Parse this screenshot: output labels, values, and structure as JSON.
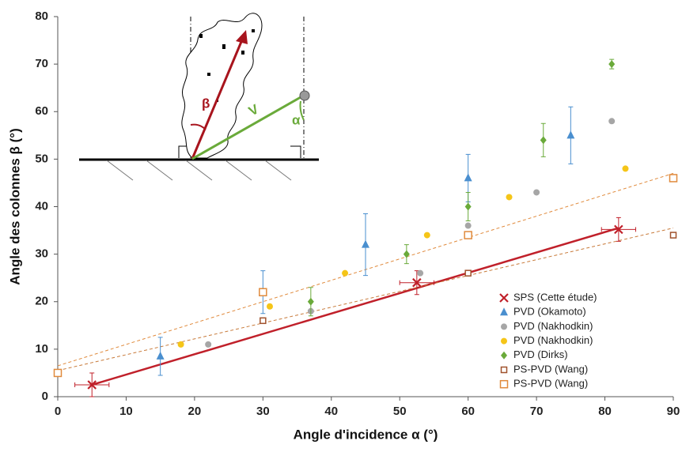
{
  "chart_data": {
    "type": "scatter",
    "xlabel": "Angle d'incidence α (°)",
    "ylabel": "Angle des colonnes β (°)",
    "xlim": [
      0,
      90
    ],
    "ylim": [
      0,
      80
    ],
    "xticks": [
      0,
      10,
      20,
      30,
      40,
      50,
      60,
      70,
      80,
      90
    ],
    "yticks": [
      0,
      10,
      20,
      30,
      40,
      50,
      60,
      70,
      80
    ],
    "grid": false,
    "legend": "lower right",
    "inset_labels": [
      "β",
      "V",
      "α"
    ],
    "series": [
      {
        "name": "SPS (Cette étude)",
        "color": "#c0202a",
        "marker": "x",
        "x": [
          5,
          52.5,
          82
        ],
        "values": [
          2.5,
          24,
          35.2
        ],
        "errors": [
          2.5,
          2.5,
          2.5
        ],
        "xerrors": [
          2.5,
          2.5,
          2.5
        ]
      },
      {
        "name": "PVD (Okamoto)",
        "color": "#4a8fcf",
        "marker": "triangle",
        "x": [
          15,
          30,
          45,
          60,
          75
        ],
        "values": [
          8.5,
          22,
          32,
          46,
          55
        ],
        "errors": [
          4,
          4.5,
          6.5,
          5,
          6
        ]
      },
      {
        "name": "PVD (Nakhodkin)",
        "color": "#a6a6a6",
        "marker": "circle",
        "x": [
          22,
          37,
          53,
          60,
          70,
          81
        ],
        "values": [
          11,
          18,
          26,
          36,
          43,
          58
        ]
      },
      {
        "name": "PVD (Nakhodkin)",
        "color": "#f5c518",
        "marker": "circle",
        "x": [
          18,
          31,
          42,
          54,
          66,
          83
        ],
        "values": [
          11,
          19,
          26,
          34,
          42,
          48
        ]
      },
      {
        "name": "PVD (Dirks)",
        "color": "#6aaa3a",
        "marker": "diamond",
        "x": [
          37,
          51,
          60,
          71,
          81
        ],
        "values": [
          20,
          30,
          40,
          54,
          70
        ],
        "errors": [
          3,
          2,
          3,
          3.5,
          1
        ]
      },
      {
        "name": "PS-PVD (Wang)",
        "color": "#a0522d",
        "marker": "square-small",
        "x": [
          0,
          30,
          60,
          90
        ],
        "values": [
          5,
          16,
          26,
          34
        ]
      },
      {
        "name": "PS-PVD (Wang)",
        "color": "#e08a3c",
        "marker": "square",
        "x": [
          0,
          30,
          60,
          90
        ],
        "values": [
          5,
          22,
          34,
          46
        ]
      }
    ],
    "trendlines": [
      {
        "color": "#c0202a",
        "style": "solid",
        "x": [
          5,
          82
        ],
        "values": [
          2.5,
          35.5
        ]
      },
      {
        "color": "#c87a3a",
        "style": "dashed",
        "x": [
          0,
          90
        ],
        "values": [
          5.5,
          35.5
        ]
      },
      {
        "color": "#e08a3c",
        "style": "dashed",
        "x": [
          0,
          90
        ],
        "values": [
          6.5,
          47
        ]
      }
    ]
  }
}
